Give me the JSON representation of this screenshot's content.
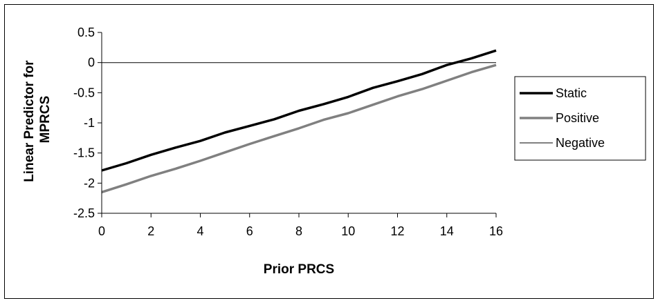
{
  "chart_data": {
    "type": "line",
    "title": "",
    "xlabel": "Prior PRCS",
    "ylabel_lines": [
      "Linear Predictor for",
      "MPRCS"
    ],
    "x": [
      0,
      1,
      2,
      3,
      4,
      5,
      6,
      7,
      8,
      9,
      10,
      11,
      12,
      13,
      14,
      15,
      16
    ],
    "xlim": [
      0,
      16
    ],
    "ylim": [
      -2.5,
      0.5
    ],
    "x_ticks": [
      0,
      2,
      4,
      6,
      8,
      10,
      12,
      14,
      16
    ],
    "y_ticks": [
      0.5,
      0,
      -0.5,
      -1,
      -1.5,
      -2,
      -2.5
    ],
    "x_tick_labels": [
      "0",
      "2",
      "4",
      "6",
      "8",
      "10",
      "12",
      "14",
      "16"
    ],
    "y_tick_labels": [
      "0.5",
      "0",
      "-0.5",
      "-1",
      "-1.5",
      "-2",
      "-2.5"
    ],
    "grid": false,
    "legend_position": "right",
    "series": [
      {
        "name": "Static",
        "color": "#000000",
        "style": "thick",
        "values": [
          -1.79,
          -1.67,
          -1.53,
          -1.41,
          -1.3,
          -1.16,
          -1.05,
          -0.94,
          -0.8,
          -0.69,
          -0.57,
          -0.42,
          -0.31,
          -0.19,
          -0.04,
          0.07,
          0.2
        ]
      },
      {
        "name": "Positive",
        "color": "#808080",
        "style": "thick",
        "values": [
          -2.15,
          -2.02,
          -1.88,
          -1.76,
          -1.63,
          -1.49,
          -1.35,
          -1.22,
          -1.09,
          -0.95,
          -0.84,
          -0.7,
          -0.56,
          -0.44,
          -0.3,
          -0.16,
          -0.04
        ]
      },
      {
        "name": "Negative",
        "color": "#000000",
        "style": "thin",
        "values": [
          0,
          0,
          0,
          0,
          0,
          0,
          0,
          0,
          0,
          0,
          0,
          0,
          0,
          0,
          0,
          0,
          0
        ]
      }
    ]
  }
}
